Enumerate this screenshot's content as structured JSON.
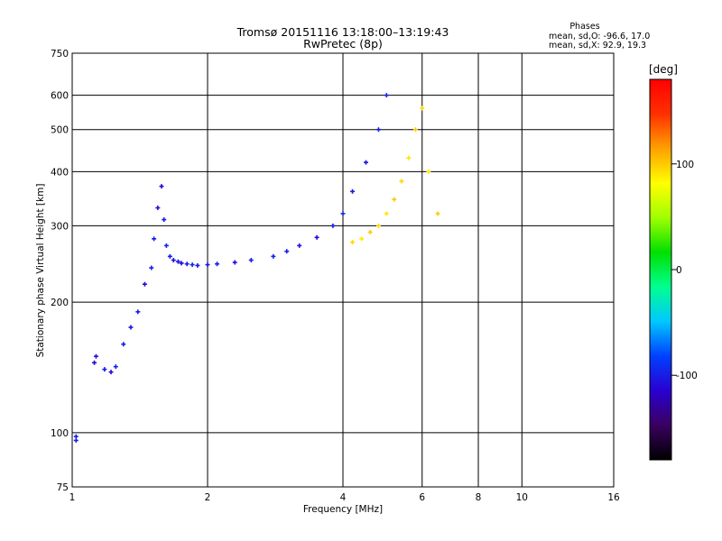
{
  "chart_data": {
    "type": "scatter",
    "title": "Tromsø 20151116 13:18:00–13:19:43",
    "subtitle": "RwPretec (8p)",
    "xlabel": "Frequency [MHz]",
    "ylabel": "Stationary phase Virtual Height [km]",
    "x_scale": "log",
    "y_scale": "log",
    "xlim": [
      1,
      16
    ],
    "ylim": [
      75,
      750
    ],
    "x_ticks": [
      1,
      2,
      4,
      6,
      8,
      10,
      16
    ],
    "y_ticks": [
      75,
      100,
      200,
      300,
      400,
      500,
      600,
      750
    ],
    "grid": true,
    "stats": {
      "heading": "Phases",
      "line_o": "mean, sd,O: -96.6, 17.0",
      "line_x": "mean, sd,X: 92.9, 19.3"
    },
    "colorbar": {
      "label": "[deg]",
      "min": -180,
      "max": 180,
      "ticks": [
        100,
        0,
        -100
      ],
      "colors": [
        "#000000",
        "#3a0060",
        "#2a00d0",
        "#0040ff",
        "#00c8ff",
        "#00ff90",
        "#00e000",
        "#a0ff00",
        "#ffff00",
        "#ffa000",
        "#ff3000",
        "#ff0000"
      ]
    },
    "series": [
      {
        "x": [
          1.02,
          1.02,
          1.12,
          1.13,
          1.18,
          1.22,
          1.25,
          1.3,
          1.35,
          1.4,
          1.45,
          1.5,
          1.52,
          1.55,
          1.58,
          1.6,
          1.62,
          1.65,
          1.68,
          1.72,
          1.75,
          1.8,
          1.85,
          1.9,
          2.0,
          2.1,
          2.3,
          2.5,
          2.8,
          3.0,
          3.2,
          3.5,
          3.8,
          4.0,
          4.2,
          4.5,
          4.8,
          5.0
        ],
        "y": [
          98,
          96,
          145,
          150,
          140,
          138,
          142,
          160,
          175,
          190,
          220,
          240,
          280,
          330,
          370,
          310,
          270,
          255,
          250,
          248,
          246,
          245,
          244,
          243,
          244,
          245,
          247,
          250,
          255,
          262,
          270,
          282,
          300,
          320,
          360,
          420,
          500,
          600
        ],
        "phase": [
          -100,
          -100,
          -110,
          -105,
          -100,
          -110,
          -95,
          -100,
          -105,
          -100,
          -110,
          -95,
          -100,
          -105,
          -110,
          -100,
          -95,
          -100,
          -105,
          -100,
          -110,
          -100,
          -95,
          -100,
          -105,
          -100,
          -110,
          -100,
          -95,
          -100,
          -105,
          -110,
          -100,
          -95,
          -100,
          -105,
          -100,
          -95
        ]
      },
      {
        "x": [
          4.2,
          4.4,
          4.6,
          4.8,
          5.0,
          5.2,
          5.4,
          5.6,
          5.8,
          6.0,
          6.2,
          6.5
        ],
        "y": [
          275,
          280,
          290,
          300,
          320,
          345,
          380,
          430,
          500,
          560,
          400,
          320
        ],
        "phase": [
          95,
          90,
          100,
          95,
          90,
          100,
          95,
          90,
          100,
          95,
          90,
          100
        ]
      }
    ]
  }
}
